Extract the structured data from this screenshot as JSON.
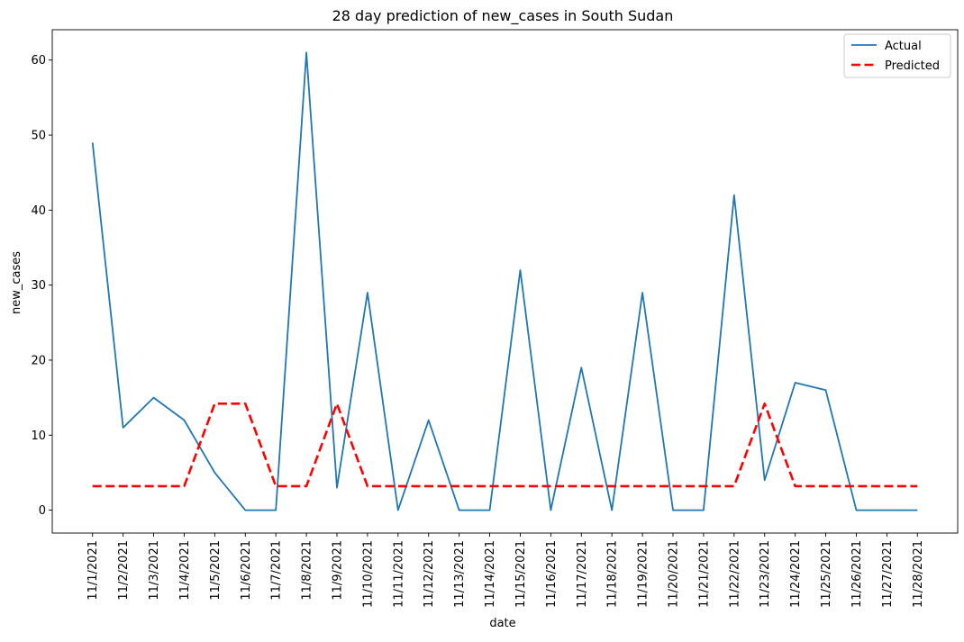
{
  "chart_data": {
    "type": "line",
    "title": "28 day prediction of new_cases in South Sudan",
    "xlabel": "date",
    "ylabel": "new_cases",
    "categories": [
      "11/1/2021",
      "11/2/2021",
      "11/3/2021",
      "11/4/2021",
      "11/5/2021",
      "11/6/2021",
      "11/7/2021",
      "11/8/2021",
      "11/9/2021",
      "11/10/2021",
      "11/11/2021",
      "11/12/2021",
      "11/13/2021",
      "11/14/2021",
      "11/15/2021",
      "11/16/2021",
      "11/17/2021",
      "11/18/2021",
      "11/19/2021",
      "11/20/2021",
      "11/21/2021",
      "11/22/2021",
      "11/23/2021",
      "11/24/2021",
      "11/25/2021",
      "11/26/2021",
      "11/27/2021",
      "11/28/2021"
    ],
    "yticks": [
      0,
      10,
      20,
      30,
      40,
      50,
      60
    ],
    "ylim": [
      -3.05,
      64.05
    ],
    "grid": false,
    "legend_position": "top-right",
    "series": [
      {
        "name": "Actual",
        "color": "#1f77b4",
        "style": "solid",
        "values": [
          49,
          11,
          15,
          12,
          5,
          0,
          0,
          61,
          3,
          29,
          0,
          12,
          0,
          0,
          32,
          0,
          19,
          0,
          29,
          0,
          0,
          42,
          4,
          17,
          16,
          0,
          0,
          0
        ]
      },
      {
        "name": "Predicted",
        "color": "#ff0000",
        "style": "dashed",
        "values": [
          3.2,
          3.2,
          3.2,
          3.2,
          14.2,
          14.2,
          3.2,
          3.2,
          14.2,
          3.2,
          3.2,
          3.2,
          3.2,
          3.2,
          3.2,
          3.2,
          3.2,
          3.2,
          3.2,
          3.2,
          3.2,
          3.2,
          14.2,
          3.2,
          3.2,
          3.2,
          3.2,
          3.2
        ]
      }
    ]
  }
}
